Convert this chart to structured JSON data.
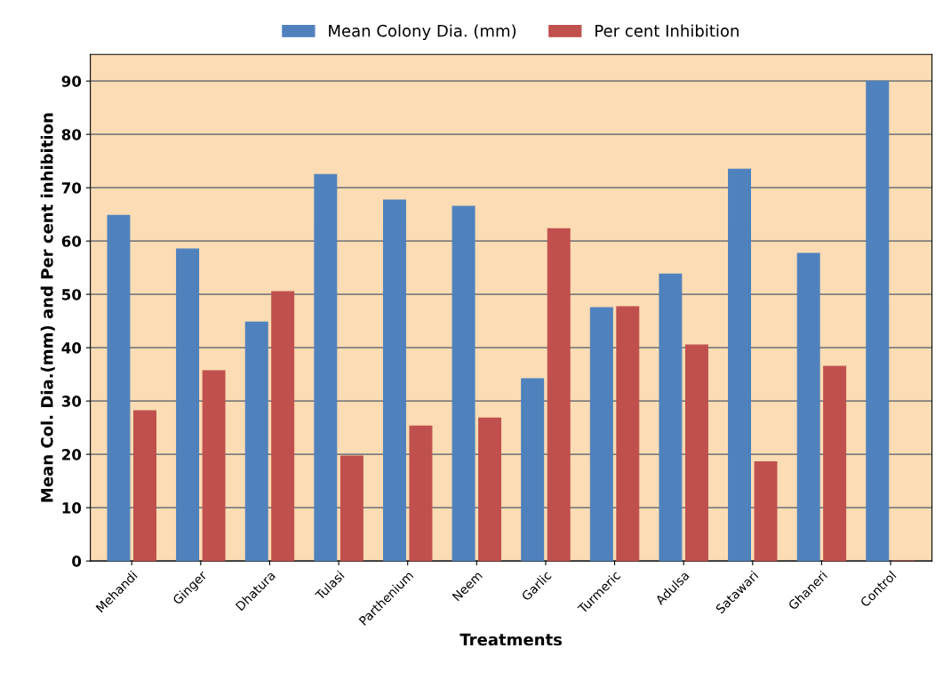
{
  "chart_data": {
    "type": "bar",
    "xlabel": "Treatments",
    "ylabel": "Mean Col. Dia.(mm) and Per cent inhibition",
    "categories": [
      "Mehandi",
      "Ginger",
      "Dhatura",
      "Tulasi",
      "Parthenium",
      "Neem",
      "Garlic",
      "Turmeric",
      "Adulsa",
      "Satawari",
      "Ghaneri",
      "Control"
    ],
    "series": [
      {
        "name": "Mean Colony Dia. (mm)",
        "color": "#4f81bd",
        "values": [
          64.8,
          58.5,
          44.8,
          72.5,
          67.7,
          66.5,
          34.2,
          47.5,
          53.8,
          73.5,
          57.7,
          90
        ]
      },
      {
        "name": "Per cent Inhibition",
        "color": "#c0504d",
        "values": [
          28.2,
          35.7,
          50.5,
          19.7,
          25.3,
          26.8,
          62.3,
          47.7,
          40.5,
          18.6,
          36.5,
          0
        ]
      }
    ],
    "ylim": [
      0,
      95
    ],
    "yticks": [
      0,
      10,
      20,
      30,
      40,
      50,
      60,
      70,
      80,
      90
    ],
    "grid": "y",
    "legend": "top"
  }
}
